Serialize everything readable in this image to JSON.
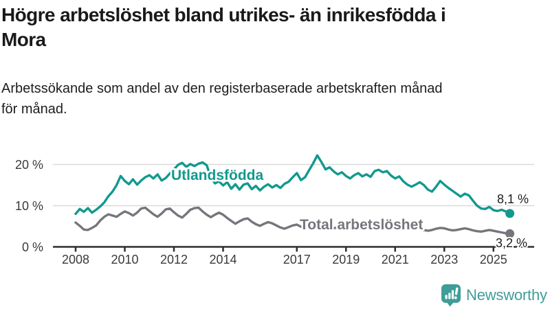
{
  "chart_data": {
    "type": "line",
    "title": "Högre arbetslöshet bland utrikes- än inrikesfödda i Mora",
    "title_lines": [
      "Högre arbetslöshet bland utrikes- än inrikesfödda i",
      "Mora"
    ],
    "subtitle": "Arbetssökande som andel av den registerbaserade arbetskraften månad för månad.",
    "subtitle_lines": [
      "Arbetssökande som andel av den registerbaserade arbetskraften månad",
      "för månad."
    ],
    "unit": "%",
    "x_start_year": 2008,
    "points_per_year": 6,
    "ylim": [
      0,
      24
    ],
    "grid": "horizontal-only",
    "legend_position": "inline-labels",
    "y_axis_ticks": [
      {
        "value": 20,
        "label": "20 %"
      },
      {
        "value": 10,
        "label": "10 %"
      },
      {
        "value": 0,
        "label": "0 %"
      }
    ],
    "x_axis_ticks": [
      {
        "year": 2008,
        "label": "2008"
      },
      {
        "year": 2010,
        "label": "2010"
      },
      {
        "year": 2012,
        "label": "2012"
      },
      {
        "year": 2014,
        "label": "2014"
      },
      {
        "year": 2017,
        "label": "2017"
      },
      {
        "year": 2019,
        "label": "2019"
      },
      {
        "year": 2021,
        "label": "2021"
      },
      {
        "year": 2023,
        "label": "2023"
      },
      {
        "year": 2025,
        "label": "2025"
      }
    ],
    "series": [
      {
        "name": "Utlandsfödda",
        "color": "#12998E",
        "end_value": 8.1,
        "end_label": "8,1 %",
        "values": [
          8.0,
          9.2,
          8.5,
          9.4,
          8.3,
          9.0,
          9.8,
          10.8,
          12.3,
          13.4,
          15.0,
          17.2,
          16.0,
          15.2,
          16.4,
          15.1,
          16.1,
          16.9,
          17.4,
          16.6,
          17.6,
          16.1,
          16.7,
          17.8,
          18.8,
          19.9,
          20.4,
          19.4,
          20.1,
          19.6,
          20.2,
          20.5,
          19.8,
          16.9,
          15.4,
          15.9,
          14.9,
          15.7,
          14.1,
          15.2,
          13.9,
          15.1,
          15.4,
          14.0,
          14.8,
          13.7,
          14.6,
          15.2,
          14.4,
          15.0,
          14.3,
          15.3,
          15.8,
          16.9,
          17.9,
          16.2,
          16.9,
          18.6,
          20.3,
          22.2,
          20.6,
          18.8,
          19.3,
          18.3,
          17.6,
          18.1,
          17.2,
          16.6,
          17.4,
          17.9,
          17.1,
          17.6,
          17.0,
          18.4,
          18.7,
          18.1,
          18.4,
          17.3,
          16.6,
          17.1,
          15.9,
          15.1,
          14.6,
          15.1,
          15.7,
          15.0,
          13.9,
          13.4,
          14.6,
          16.0,
          15.1,
          14.3,
          13.6,
          12.9,
          12.2,
          12.9,
          12.5,
          11.2,
          10.0,
          9.3,
          9.2,
          9.7,
          8.9,
          8.7,
          9.0,
          8.6,
          8.1
        ]
      },
      {
        "name": "Total arbetslöshet",
        "color": "#75767B",
        "end_value": 3.2,
        "end_label": "3,2 %",
        "values": [
          5.9,
          5.1,
          4.2,
          4.1,
          4.6,
          5.2,
          6.4,
          7.3,
          7.9,
          7.6,
          7.3,
          8.0,
          8.6,
          8.2,
          7.6,
          8.3,
          9.3,
          9.5,
          8.7,
          7.9,
          7.3,
          8.1,
          9.1,
          9.3,
          8.4,
          7.6,
          7.1,
          8.0,
          9.0,
          9.4,
          9.5,
          8.6,
          7.8,
          7.2,
          7.8,
          8.3,
          7.8,
          7.0,
          6.3,
          5.6,
          6.2,
          6.7,
          6.9,
          6.1,
          5.5,
          5.1,
          5.6,
          6.0,
          5.7,
          5.2,
          4.7,
          4.4,
          4.8,
          5.2,
          5.4,
          4.9,
          4.6,
          4.8,
          5.1,
          5.3,
          5.0,
          4.6,
          4.3,
          4.5,
          4.8,
          5.0,
          4.7,
          4.3,
          4.1,
          4.4,
          4.6,
          4.8,
          4.7,
          5.4,
          5.8,
          5.6,
          5.4,
          5.2,
          5.0,
          4.7,
          4.4,
          4.2,
          4.4,
          4.6,
          4.4,
          4.1,
          3.9,
          4.1,
          4.4,
          4.6,
          4.5,
          4.2,
          4.0,
          4.1,
          4.3,
          4.5,
          4.3,
          4.0,
          3.8,
          3.7,
          3.9,
          4.1,
          3.9,
          3.7,
          3.5,
          3.3,
          3.2
        ]
      }
    ],
    "colors": {
      "grid": "#DADADA",
      "axis": "#2E2E2E",
      "tick_label": "#3A3A3A",
      "value_label": "#1D1D1D"
    }
  },
  "branding": {
    "name": "Newsworthy",
    "icon": "newsworthy-bubble-chart-icon",
    "color": "#3F9D98"
  }
}
